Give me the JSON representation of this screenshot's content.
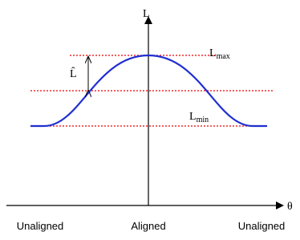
{
  "axes": {
    "y_label": "L",
    "x_label": "θ"
  },
  "positions": [
    "Unaligned",
    "Aligned",
    "Unaligned"
  ],
  "levels": {
    "max": {
      "symbol": "L",
      "subscript": "max"
    },
    "min": {
      "symbol": "L",
      "subscript": "min"
    }
  },
  "amplitude": {
    "label": "L̂"
  }
}
